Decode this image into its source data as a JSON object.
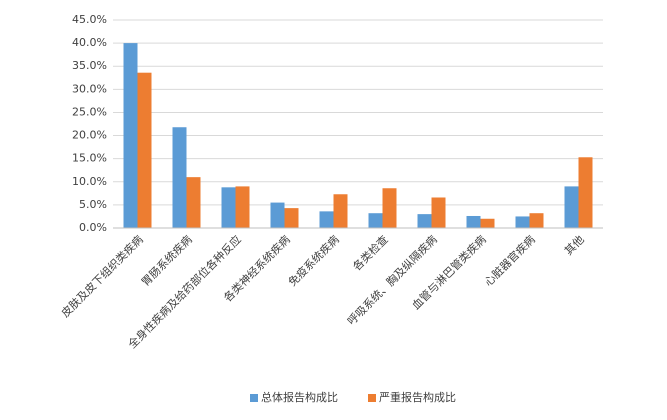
{
  "chart_data": {
    "type": "bar",
    "categories": [
      "皮肤及皮下组织类疾病",
      "胃肠系统疾病",
      "全身性疾病及给药部位各种反应",
      "各类神经系统疾病",
      "免疫系统疾病",
      "各类检查",
      "呼吸系统、胸及纵隔疾病",
      "血管与淋巴管类疾病",
      "心脏器官疾病",
      "其他"
    ],
    "series": [
      {
        "name": "总体报告构成比",
        "color": "#5b9bd5",
        "values": [
          40.0,
          21.8,
          8.8,
          5.5,
          3.6,
          3.2,
          3.0,
          2.6,
          2.5,
          9.0
        ]
      },
      {
        "name": "严重报告构成比",
        "color": "#ed7d31",
        "values": [
          33.6,
          11.0,
          9.0,
          4.3,
          7.3,
          8.6,
          6.6,
          2.0,
          3.2,
          15.3
        ]
      }
    ],
    "ylim": [
      0,
      45
    ],
    "yticks": [
      {
        "value": 0,
        "label": "0.0%"
      },
      {
        "value": 5,
        "label": "5.0%"
      },
      {
        "value": 10,
        "label": "10.0%"
      },
      {
        "value": 15,
        "label": "15.0%"
      },
      {
        "value": 20,
        "label": "20.0%"
      },
      {
        "value": 25,
        "label": "25.0%"
      },
      {
        "value": 30,
        "label": "30.0%"
      },
      {
        "value": 35,
        "label": "35.0%"
      },
      {
        "value": 40,
        "label": "40.0%"
      },
      {
        "value": 45,
        "label": "45.0%"
      }
    ],
    "grid": true,
    "legend": "bottom"
  }
}
